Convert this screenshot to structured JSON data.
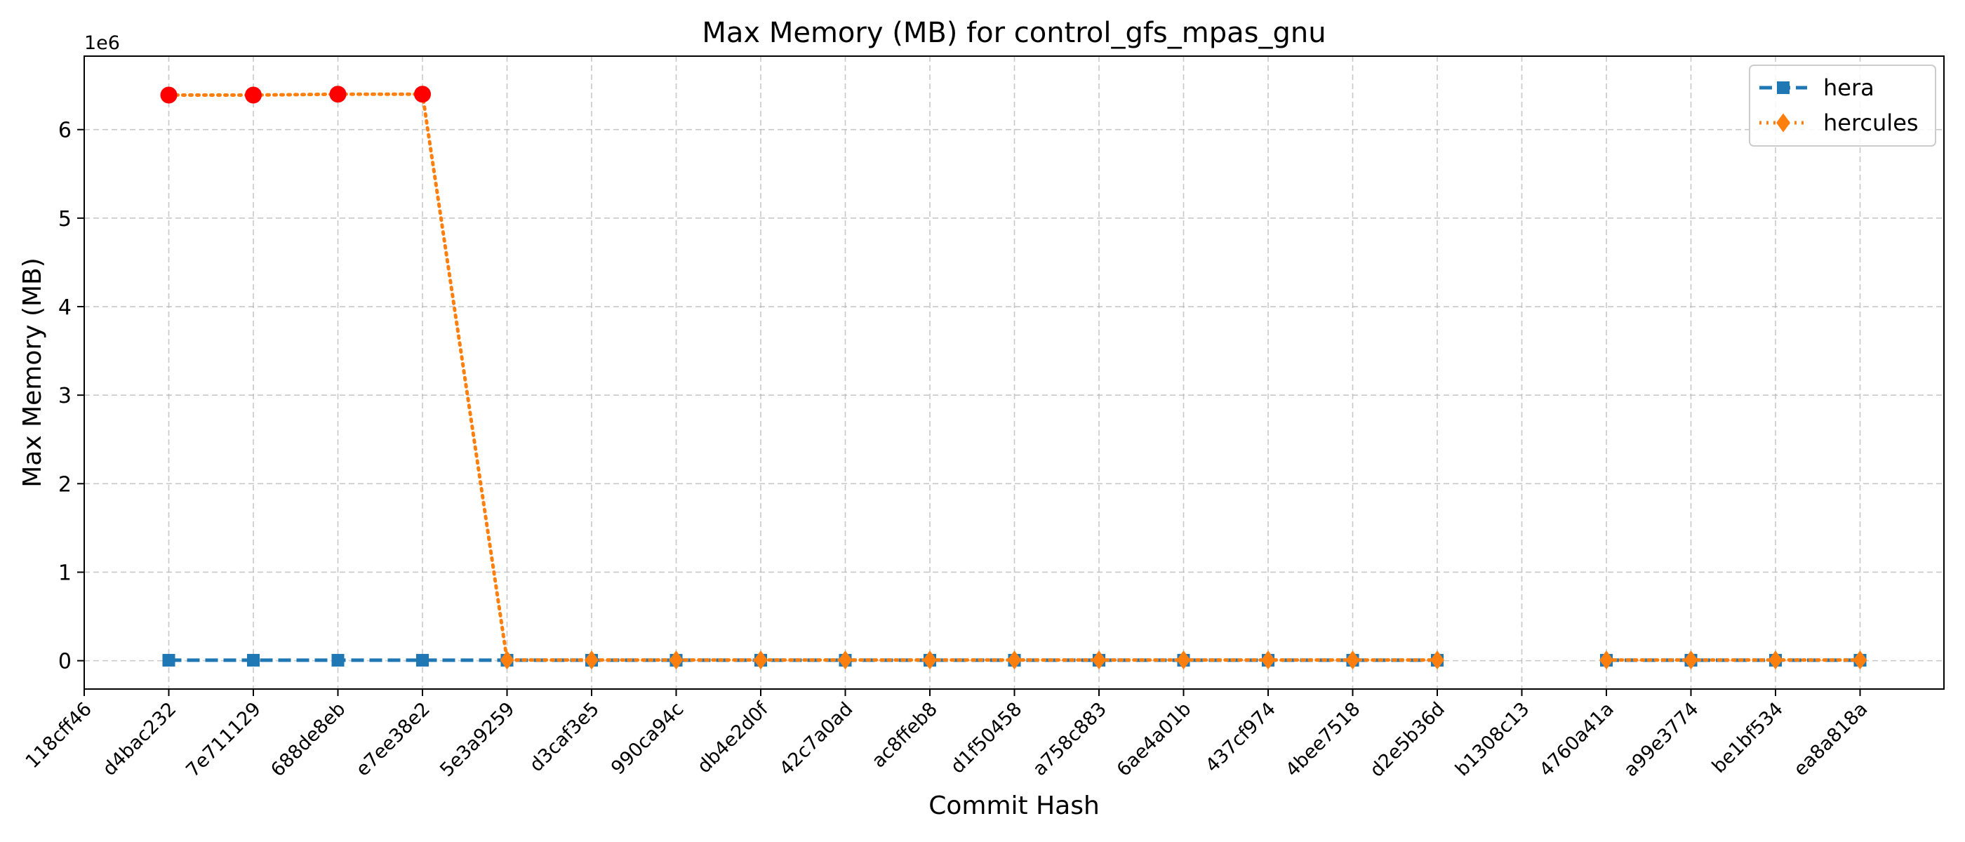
{
  "chart_data": {
    "type": "line",
    "title": "Max Memory (MB) for control_gfs_mpas_gnu",
    "xlabel": "Commit Hash",
    "ylabel": "Max Memory (MB)",
    "y_offset_text": "1e6",
    "y_scale": 1000000,
    "ylim": [
      -320000,
      6830000
    ],
    "yticks": [
      0,
      1000000,
      2000000,
      3000000,
      4000000,
      5000000,
      6000000
    ],
    "ytick_labels": [
      "0",
      "1",
      "2",
      "3",
      "4",
      "5",
      "6"
    ],
    "grid": true,
    "legend_location": "top-right",
    "categories": [
      "118cff46",
      "d4bac232",
      "7e711129",
      "688de8eb",
      "e7ee38e2",
      "5e3a9259",
      "d3caf3e5",
      "990ca94c",
      "db4e2d0f",
      "42c7a0ad",
      "ac8ffeb8",
      "d1f50458",
      "a758c883",
      "6ae4a01b",
      "437cf974",
      "4bee7518",
      "d2e5b36d",
      "b1308c13",
      "4760a41a",
      "a99e3774",
      "be1bf534",
      "ea8a818a"
    ],
    "series": [
      {
        "name": "hera",
        "color": "#1f77b4",
        "marker": "square",
        "linestyle": "dashed",
        "values": [
          null,
          5500,
          5500,
          5500,
          5500,
          5500,
          5500,
          5500,
          5500,
          5500,
          5500,
          5500,
          5500,
          5500,
          5500,
          5500,
          5500,
          null,
          5500,
          5500,
          5500,
          5500
        ]
      },
      {
        "name": "hercules",
        "color": "#ff7f0e",
        "marker": "diamond",
        "linestyle": "dotted",
        "highlight_color": "#ff0000",
        "highlight_indices": [
          1,
          2,
          3,
          4
        ],
        "values": [
          null,
          6390000,
          6390000,
          6400000,
          6400000,
          8000,
          8000,
          8000,
          8000,
          8000,
          8000,
          8000,
          8000,
          8000,
          8000,
          8000,
          8000,
          null,
          8000,
          8000,
          8000,
          8000
        ]
      }
    ]
  }
}
